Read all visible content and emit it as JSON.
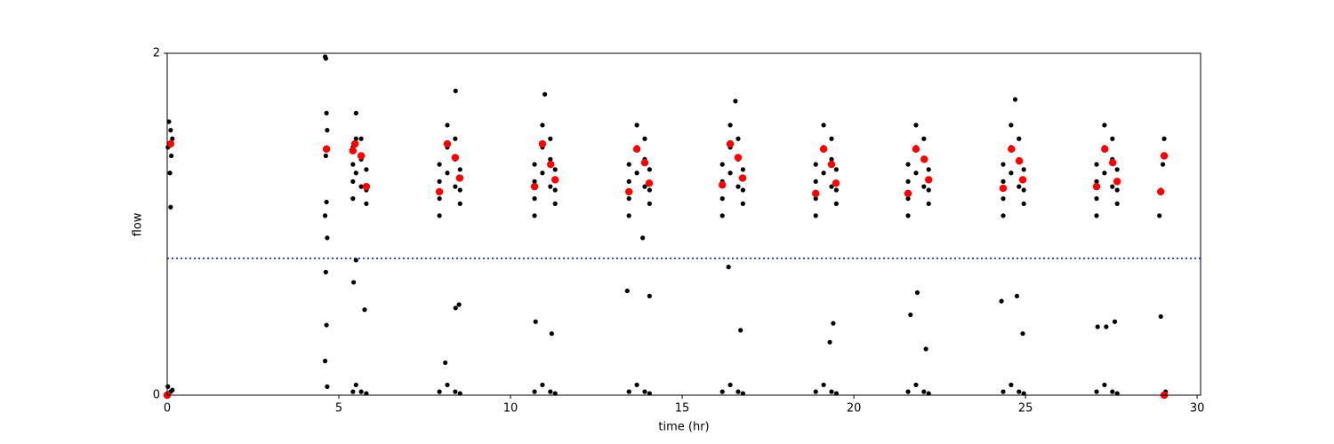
{
  "chart_data": {
    "type": "scatter",
    "xlabel": "time (hr)",
    "ylabel": "flow",
    "xlim": [
      0,
      30.1
    ],
    "ylim": [
      0,
      2
    ],
    "xticks": [
      0,
      5,
      10,
      15,
      20,
      25,
      30
    ],
    "yticks": [
      0,
      2
    ],
    "hlines": [
      {
        "y": 0.8,
        "color": "#0000ff",
        "style": "dotted"
      }
    ],
    "series": [
      {
        "color": "#000000",
        "x": [
          0.02,
          0.05,
          0.08,
          0.1,
          0.12,
          0.15,
          0.02,
          0.1,
          0.15,
          0.1,
          4.6,
          4.62,
          4.64,
          4.66,
          4.62,
          4.64,
          4.6,
          4.66,
          4.62,
          4.64,
          4.6,
          4.66,
          5.41,
          5.41,
          5.41,
          5.41,
          5.5,
          5.5,
          5.5,
          5.65,
          5.65,
          5.65,
          5.8,
          5.8,
          5.8,
          5.41,
          5.5,
          5.65,
          5.8,
          5.5,
          5.43,
          5.75,
          7.93,
          7.93,
          7.93,
          7.93,
          8.16,
          8.16,
          8.16,
          8.39,
          8.39,
          8.39,
          8.53,
          8.53,
          8.53,
          7.93,
          8.16,
          8.39,
          8.53,
          10.7,
          10.7,
          10.7,
          10.7,
          10.93,
          10.93,
          10.93,
          11.16,
          11.16,
          11.16,
          11.3,
          11.3,
          11.3,
          10.7,
          10.93,
          11.16,
          11.3,
          13.45,
          13.45,
          13.45,
          13.45,
          13.68,
          13.68,
          13.68,
          13.91,
          13.91,
          13.91,
          14.05,
          14.05,
          14.05,
          13.45,
          13.68,
          13.91,
          14.05,
          16.17,
          16.17,
          16.17,
          16.17,
          16.4,
          16.4,
          16.4,
          16.63,
          16.63,
          16.63,
          16.77,
          16.77,
          16.77,
          16.17,
          16.4,
          16.63,
          16.77,
          18.89,
          18.89,
          18.89,
          18.89,
          19.12,
          19.12,
          19.12,
          19.35,
          19.35,
          19.35,
          19.49,
          19.49,
          19.49,
          18.89,
          19.12,
          19.35,
          19.49,
          21.58,
          21.58,
          21.58,
          21.58,
          21.81,
          21.81,
          21.81,
          22.04,
          22.04,
          22.04,
          22.18,
          22.18,
          22.18,
          21.58,
          21.81,
          22.04,
          22.18,
          24.35,
          24.35,
          24.35,
          24.35,
          24.58,
          24.58,
          24.58,
          24.81,
          24.81,
          24.81,
          24.95,
          24.95,
          24.95,
          24.35,
          24.58,
          24.81,
          24.95,
          27.07,
          27.07,
          27.07,
          27.07,
          27.3,
          27.3,
          27.3,
          27.53,
          27.53,
          27.53,
          27.67,
          27.67,
          27.67,
          27.07,
          27.3,
          27.53,
          27.67,
          28.9,
          28.94,
          29.0,
          29.04,
          29.08,
          28.94,
          8.4,
          8.5,
          8.1,
          10.73,
          11.2,
          13.4,
          13.85,
          14.05,
          16.35,
          16.7,
          19.4,
          19.3,
          21.65,
          21.85,
          22.1,
          24.3,
          24.75,
          24.92,
          27.1,
          27.35,
          27.6,
          11.0,
          8.4,
          16.55,
          24.7
        ],
        "y": [
          1.45,
          1.6,
          1.3,
          1.55,
          1.4,
          1.5,
          0.05,
          0.02,
          0.03,
          1.1,
          1.98,
          1.97,
          1.65,
          1.55,
          1.4,
          1.13,
          1.05,
          0.92,
          0.72,
          0.41,
          0.2,
          0.05,
          1.15,
          1.25,
          1.35,
          1.45,
          1.3,
          1.5,
          1.65,
          1.22,
          1.38,
          1.5,
          1.12,
          1.2,
          1.32,
          0.02,
          0.06,
          0.02,
          0.01,
          0.79,
          0.66,
          0.5,
          1.05,
          1.15,
          1.25,
          1.35,
          1.3,
          1.45,
          1.58,
          1.22,
          1.38,
          1.5,
          1.12,
          1.2,
          1.32,
          0.02,
          0.06,
          0.02,
          0.01,
          1.05,
          1.15,
          1.25,
          1.35,
          1.3,
          1.45,
          1.58,
          1.22,
          1.38,
          1.5,
          1.12,
          1.2,
          1.32,
          0.02,
          0.06,
          0.02,
          0.01,
          1.05,
          1.15,
          1.25,
          1.35,
          1.3,
          1.45,
          1.58,
          1.22,
          1.38,
          1.5,
          1.12,
          1.2,
          1.32,
          0.02,
          0.06,
          0.02,
          0.01,
          1.05,
          1.15,
          1.25,
          1.35,
          1.3,
          1.45,
          1.58,
          1.22,
          1.38,
          1.5,
          1.12,
          1.2,
          1.32,
          0.02,
          0.06,
          0.02,
          0.01,
          1.05,
          1.15,
          1.25,
          1.35,
          1.3,
          1.45,
          1.58,
          1.22,
          1.38,
          1.5,
          1.12,
          1.2,
          1.32,
          0.02,
          0.06,
          0.02,
          0.01,
          1.05,
          1.15,
          1.25,
          1.35,
          1.3,
          1.45,
          1.58,
          1.22,
          1.38,
          1.5,
          1.12,
          1.2,
          1.32,
          0.02,
          0.06,
          0.02,
          0.01,
          1.05,
          1.15,
          1.25,
          1.35,
          1.3,
          1.45,
          1.58,
          1.22,
          1.38,
          1.5,
          1.12,
          1.2,
          1.32,
          0.02,
          0.06,
          0.02,
          0.01,
          1.05,
          1.15,
          1.25,
          1.35,
          1.3,
          1.45,
          1.58,
          1.22,
          1.38,
          1.5,
          1.12,
          1.2,
          1.32,
          0.02,
          0.06,
          0.02,
          0.01,
          1.05,
          1.2,
          1.35,
          1.5,
          0.02,
          0.46,
          0.51,
          0.53,
          0.19,
          0.43,
          0.36,
          0.61,
          0.92,
          0.58,
          0.75,
          0.38,
          0.42,
          0.31,
          0.47,
          0.6,
          0.27,
          0.55,
          0.58,
          0.36,
          0.4,
          0.4,
          0.43,
          1.76,
          1.78,
          1.72,
          1.73
        ]
      },
      {
        "color": "#ff0000",
        "x": [
          0.1,
          4.64,
          5.41,
          5.47,
          5.65,
          5.8,
          7.93,
          8.16,
          8.39,
          8.52,
          10.7,
          10.93,
          11.17,
          11.3,
          13.45,
          13.68,
          13.91,
          14.04,
          16.17,
          16.4,
          16.63,
          16.76,
          18.89,
          19.12,
          19.35,
          19.48,
          21.58,
          21.81,
          22.05,
          22.18,
          24.35,
          24.59,
          24.82,
          24.92,
          27.07,
          27.31,
          27.54,
          27.67,
          28.94,
          29.04,
          0,
          29.04
        ],
        "y": [
          1.47,
          1.44,
          1.43,
          1.47,
          1.4,
          1.22,
          1.19,
          1.47,
          1.39,
          1.27,
          1.22,
          1.47,
          1.35,
          1.26,
          1.19,
          1.44,
          1.36,
          1.24,
          1.23,
          1.47,
          1.39,
          1.27,
          1.18,
          1.44,
          1.35,
          1.24,
          1.18,
          1.44,
          1.38,
          1.26,
          1.21,
          1.44,
          1.37,
          1.26,
          1.22,
          1.44,
          1.36,
          1.25,
          1.19,
          1.4,
          0,
          0
        ]
      }
    ]
  }
}
